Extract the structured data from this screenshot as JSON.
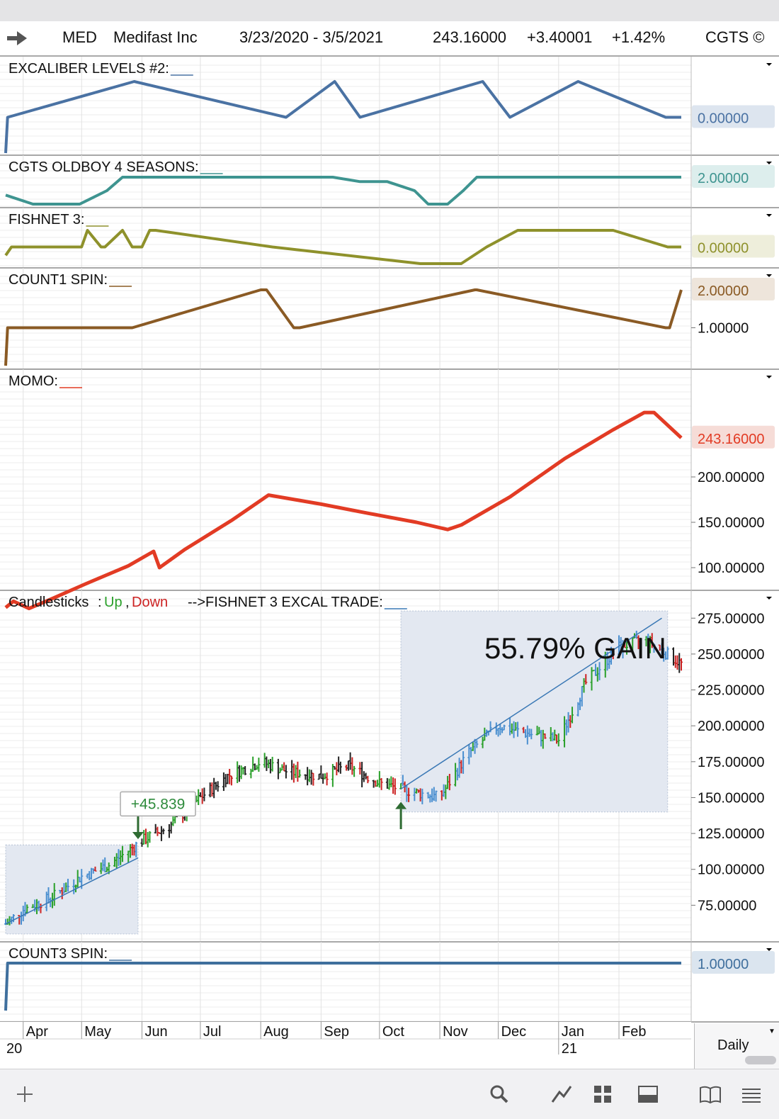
{
  "header": {
    "symbol": "MED",
    "company": "Medifast Inc",
    "date_range": "3/23/2020 - 3/5/2021",
    "last_price": "243.16000",
    "change": "+3.40001",
    "change_pct": "+1.42%",
    "source": "CGTS ©"
  },
  "colors": {
    "excaliber": "#4a72a3",
    "oldboy": "#3e9490",
    "fishnet": "#8e912b",
    "count1": "#8a5a24",
    "momo": "#e23b24",
    "count3": "#3f6f9d",
    "up": "#2aa02a",
    "down": "#cc2222",
    "box_fill": "#e3e8f1",
    "trend_line": "#3a78b5"
  },
  "panels": [
    {
      "id": "excaliber",
      "label": "EXCALIBER LEVELS #2:",
      "value_label": "0.00000",
      "ticks": []
    },
    {
      "id": "oldboy",
      "label": "CGTS OLDBOY 4 SEASONS:",
      "value_label": "2.00000",
      "ticks": []
    },
    {
      "id": "fishnet",
      "label": "FISHNET 3:",
      "value_label": "0.00000",
      "ticks": []
    },
    {
      "id": "count1",
      "label": "COUNT1 SPIN:",
      "value_label": "2.00000",
      "ticks": [
        "1.00000"
      ]
    },
    {
      "id": "momo",
      "label": "MOMO:",
      "value_label": "243.16000",
      "ticks": [
        "200.00000",
        "150.00000",
        "100.00000"
      ]
    },
    {
      "id": "price",
      "label": "Candlesticks",
      "value_label": "",
      "ticks": [
        "275.00000",
        "250.00000",
        "225.00000",
        "200.00000",
        "175.00000",
        "150.00000",
        "125.00000",
        "100.00000",
        "75.00000"
      ]
    },
    {
      "id": "count3",
      "label": "COUNT3 SPIN:",
      "value_label": "1.00000",
      "ticks": []
    }
  ],
  "legend": {
    "candles": "Candlesticks",
    "up": "Up",
    "down": "Down",
    "trade_label": "-->FISHNET 3 EXCAL TRADE:"
  },
  "annotations": {
    "gain_text": "55.79% GAIN",
    "trade1_value": "+45.839"
  },
  "xaxis": {
    "months": [
      "Apr",
      "May",
      "Jun",
      "Jul",
      "Aug",
      "Sep",
      "Oct",
      "Nov",
      "Dec",
      "Jan",
      "Feb"
    ],
    "years": [
      "20",
      "21"
    ]
  },
  "interval": "Daily",
  "chart_data": [
    {
      "type": "line",
      "title": "EXCALIBER LEVELS #2",
      "x": [
        "2020-03-23",
        "2020-03-24",
        "2020-05-28",
        "2020-08-14",
        "2020-09-08",
        "2020-09-21",
        "2020-11-23",
        "2020-12-07",
        "2021-01-11",
        "2021-02-25",
        "2021-03-05"
      ],
      "values": [
        -1,
        0,
        1,
        0,
        1,
        0,
        1,
        0,
        1,
        0,
        0
      ]
    },
    {
      "type": "line",
      "title": "CGTS OLDBOY 4 SEASONS",
      "x": [
        "2020-03-23",
        "2020-04-06",
        "2020-04-30",
        "2020-05-14",
        "2020-05-22",
        "2020-09-07",
        "2020-09-21",
        "2020-10-05",
        "2020-10-19",
        "2020-10-26",
        "2020-11-05",
        "2020-11-13",
        "2020-11-20",
        "2021-03-05"
      ],
      "values": [
        0,
        -1,
        -1,
        0.5,
        2,
        2,
        1.5,
        1.5,
        0.5,
        -1,
        -1,
        0.5,
        2,
        2
      ]
    },
    {
      "type": "line",
      "title": "FISHNET 3",
      "x": [
        "2020-03-23",
        "2020-03-26",
        "2020-05-01",
        "2020-05-04",
        "2020-05-11",
        "2020-05-13",
        "2020-05-22",
        "2020-05-27",
        "2020-06-01",
        "2020-06-05",
        "2020-06-08",
        "2020-08-07",
        "2020-10-22",
        "2020-11-12",
        "2020-11-25",
        "2020-12-11",
        "2021-01-29",
        "2021-02-26",
        "2021-03-05"
      ],
      "values": [
        -0.5,
        0,
        0,
        1,
        0,
        0,
        1,
        0,
        0,
        1,
        1,
        0,
        -1,
        -1,
        0,
        1,
        1,
        0,
        0
      ]
    },
    {
      "type": "line",
      "title": "COUNT1 SPIN",
      "x": [
        "2020-03-23",
        "2020-03-24",
        "2020-05-27",
        "2020-08-01",
        "2020-08-04",
        "2020-08-18",
        "2020-08-21",
        "2020-11-19",
        "2020-11-20",
        "2021-02-25",
        "2021-02-27",
        "2021-03-05"
      ],
      "values": [
        0,
        1,
        1,
        2,
        2,
        1,
        1,
        2,
        2,
        1,
        1,
        2
      ]
    },
    {
      "type": "line",
      "title": "MOMO",
      "x": [
        "2020-03-23",
        "2020-03-27",
        "2020-04-04",
        "2020-04-15",
        "2020-05-03",
        "2020-05-25",
        "2020-06-07",
        "2020-06-10",
        "2020-06-23",
        "2020-07-17",
        "2020-08-05",
        "2020-09-01",
        "2020-09-25",
        "2020-10-20",
        "2020-11-05",
        "2020-11-12",
        "2020-12-07",
        "2021-01-04",
        "2021-01-29",
        "2021-02-14",
        "2021-02-19",
        "2021-03-05"
      ],
      "values": [
        56,
        63,
        55,
        65,
        82,
        102,
        118,
        100,
        120,
        152,
        180,
        170,
        160,
        150,
        142,
        147,
        178,
        220,
        252,
        271,
        271,
        243.16
      ]
    },
    {
      "type": "bar",
      "title": "Candlesticks",
      "series_type": "ohlc",
      "dates": [
        "2020-03-23",
        "2020-04-01",
        "2020-04-15",
        "2020-05-01",
        "2020-05-15",
        "2020-06-01",
        "2020-06-15",
        "2020-07-01",
        "2020-07-15",
        "2020-08-01",
        "2020-08-15",
        "2020-09-01",
        "2020-09-15",
        "2020-10-01",
        "2020-10-15",
        "2020-11-01",
        "2020-11-15",
        "2020-12-01",
        "2020-12-15",
        "2021-01-01",
        "2021-01-15",
        "2021-02-01",
        "2021-02-15",
        "2021-03-05"
      ],
      "close": [
        62,
        72,
        80,
        95,
        103,
        120,
        130,
        150,
        165,
        175,
        168,
        165,
        172,
        160,
        155,
        150,
        180,
        200,
        195,
        190,
        230,
        255,
        260,
        243.16
      ],
      "high": [
        68,
        78,
        84,
        100,
        108,
        122,
        135,
        158,
        170,
        180,
        172,
        170,
        180,
        165,
        158,
        158,
        190,
        205,
        200,
        198,
        238,
        265,
        278,
        250
      ],
      "low": [
        57,
        62,
        70,
        88,
        98,
        110,
        125,
        140,
        160,
        165,
        162,
        160,
        160,
        152,
        145,
        140,
        170,
        180,
        185,
        185,
        215,
        225,
        245,
        223
      ],
      "ylim": [
        50,
        285
      ]
    },
    {
      "type": "line",
      "title": "COUNT3 SPIN",
      "x": [
        "2020-03-23",
        "2020-03-24",
        "2021-03-05"
      ],
      "values": [
        0,
        1,
        1
      ]
    }
  ],
  "footer_icons": [
    "add-icon",
    "search-icon",
    "draw-icon",
    "grid-icon",
    "panel-icon",
    "book-icon",
    "menu-icon"
  ]
}
